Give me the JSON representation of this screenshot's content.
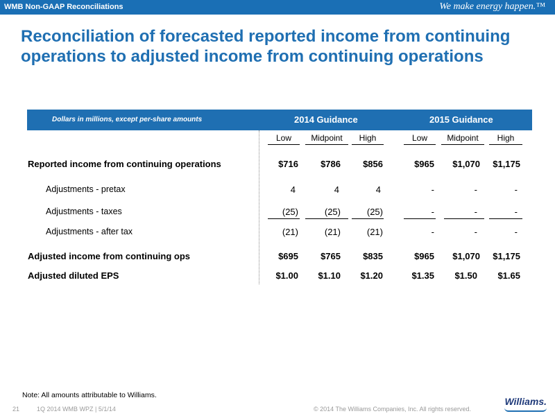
{
  "topbar": {
    "section": "WMB Non-GAAP Reconciliations",
    "tagline": "We make energy happen.™"
  },
  "title": "Reconciliation of forecasted reported income from continuing operations to adjusted income from continuing operations",
  "table": {
    "header_note": "Dollars in millions, except per-share amounts",
    "group_2014": "2014 Guidance",
    "group_2015": "2015 Guidance",
    "columns": [
      "Low",
      "Midpoint",
      "High",
      "Low",
      "Midpoint",
      "High"
    ],
    "rows": [
      {
        "label": "Reported income from continuing operations",
        "values": [
          "$716",
          "$786",
          "$856",
          "$965",
          "$1,070",
          "$1,175"
        ]
      },
      {
        "label": "Adjustments - pretax",
        "values": [
          "4",
          "4",
          "4",
          "-",
          "-",
          "-"
        ]
      },
      {
        "label": "Adjustments - taxes",
        "values": [
          "(25)",
          "(25)",
          "(25)",
          "-",
          "-",
          "-"
        ]
      },
      {
        "label": "Adjustments - after tax",
        "values": [
          "(21)",
          "(21)",
          "(21)",
          "-",
          "-",
          "-"
        ]
      },
      {
        "label": "Adjusted income from continuing ops",
        "values": [
          "$695",
          "$765",
          "$835",
          "$965",
          "$1,070",
          "$1,175"
        ]
      },
      {
        "label": "Adjusted diluted EPS",
        "values": [
          "$1.00",
          "$1.10",
          "$1.20",
          "$1.35",
          "$1.50",
          "$1.65"
        ]
      }
    ]
  },
  "note": "Note:  All amounts attributable to Williams.",
  "footer": {
    "page": "21",
    "desc": "1Q 2014 WMB WPZ  |  5/1/14",
    "copyright": "© 2014 The Williams Companies, Inc. All rights reserved."
  },
  "logo": "Williams."
}
